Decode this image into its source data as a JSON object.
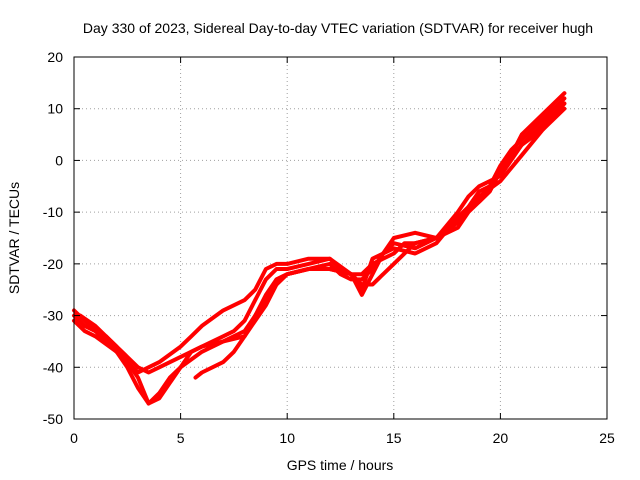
{
  "chart_data": {
    "type": "line",
    "title": "Day 330 of 2023, Sidereal Day-to-day VTEC variation (SDTVAR) for receiver hugh",
    "xlabel": "GPS time / hours",
    "ylabel": "SDTVAR / TECUs",
    "xlim": [
      0,
      25
    ],
    "ylim": [
      -50,
      20
    ],
    "xticks": [
      0,
      5,
      10,
      15,
      20,
      25
    ],
    "yticks": [
      -50,
      -40,
      -30,
      -20,
      -10,
      0,
      10,
      20
    ],
    "grid": true,
    "legend": "none",
    "color": "#ff0000",
    "series": [
      {
        "x": [
          0,
          0.5,
          1,
          1.5,
          2,
          2.5,
          3,
          3.5,
          4,
          5,
          6,
          7,
          7.5,
          8,
          8.5,
          9,
          9.5,
          10,
          11,
          12,
          12.5,
          13,
          13.5,
          14,
          14.5,
          15,
          15.5,
          16,
          17,
          18,
          18.5,
          19,
          19.5,
          20,
          20.5,
          21,
          22,
          23
        ],
        "y": [
          -29,
          -31,
          -33,
          -34,
          -36,
          -38,
          -40,
          -41,
          -40,
          -38,
          -36,
          -34,
          -33,
          -31,
          -27,
          -23,
          -21,
          -21,
          -20,
          -19,
          -21,
          -22,
          -22,
          -20,
          -19,
          -18,
          -16,
          -16,
          -15,
          -12,
          -9,
          -6,
          -5,
          -1,
          2,
          4,
          8,
          12
        ]
      },
      {
        "x": [
          0,
          0.5,
          1,
          1.5,
          2,
          2.5,
          3,
          3.5,
          4,
          4.5,
          5,
          6,
          7,
          8,
          8.5,
          9,
          9.5,
          10,
          11,
          12,
          12.5,
          13,
          13.5,
          14,
          14.5,
          15,
          16,
          17,
          18,
          18.5,
          19,
          20,
          21,
          22,
          23
        ],
        "y": [
          -30,
          -32,
          -33,
          -35,
          -37,
          -40,
          -44,
          -47,
          -45,
          -42,
          -40,
          -37,
          -35,
          -33,
          -30,
          -26,
          -23,
          -22,
          -21,
          -20,
          -22,
          -23,
          -23,
          -21,
          -18,
          -16,
          -17,
          -15,
          -10,
          -7,
          -5,
          -3,
          3,
          7,
          11
        ]
      },
      {
        "x": [
          0,
          0.5,
          1,
          2,
          2.5,
          3,
          3.5,
          4,
          5,
          5.5,
          6,
          7,
          8,
          8.5,
          9,
          9.5,
          10,
          11,
          12,
          13,
          13.5,
          14,
          15,
          16,
          17,
          18,
          19,
          19.5,
          20,
          20.5,
          21,
          22,
          23
        ],
        "y": [
          -31,
          -33,
          -34,
          -37,
          -39,
          -41,
          -40,
          -39,
          -36,
          -34,
          -32,
          -29,
          -27,
          -25,
          -21,
          -20,
          -20,
          -19,
          -19,
          -22,
          -24,
          -24,
          -20,
          -16,
          -15,
          -11,
          -8,
          -6,
          -2,
          1,
          5,
          9,
          13
        ]
      },
      {
        "x": [
          0.3,
          1,
          2,
          3,
          3.5,
          4,
          4.5,
          5,
          5.5,
          6,
          7,
          8,
          8.5,
          9,
          9.5,
          10,
          11,
          12,
          13,
          13.5,
          14,
          15,
          16,
          17,
          18,
          19,
          20,
          21,
          22,
          23
        ],
        "y": [
          -30,
          -32,
          -36,
          -42,
          -47,
          -46,
          -43,
          -40,
          -37,
          -36,
          -35,
          -34,
          -31,
          -28,
          -24,
          -22,
          -21,
          -21,
          -22,
          -25,
          -19,
          -17,
          -18,
          -16,
          -11,
          -7,
          -4,
          1,
          6,
          11
        ]
      },
      {
        "x": [
          5.7,
          6,
          7,
          7.5,
          8,
          8.5,
          9,
          9.5,
          10,
          11,
          12,
          13,
          13.5,
          14,
          14.5,
          15,
          16,
          17,
          18,
          18.5,
          19,
          19.5,
          20,
          21,
          22,
          23
        ],
        "y": [
          -42,
          -41,
          -39,
          -37,
          -34,
          -30,
          -27,
          -23,
          -22,
          -21,
          -21,
          -22,
          -26,
          -22,
          -18,
          -15,
          -14,
          -15,
          -13,
          -10,
          -8,
          -6,
          -2,
          3,
          6,
          10
        ]
      }
    ]
  }
}
